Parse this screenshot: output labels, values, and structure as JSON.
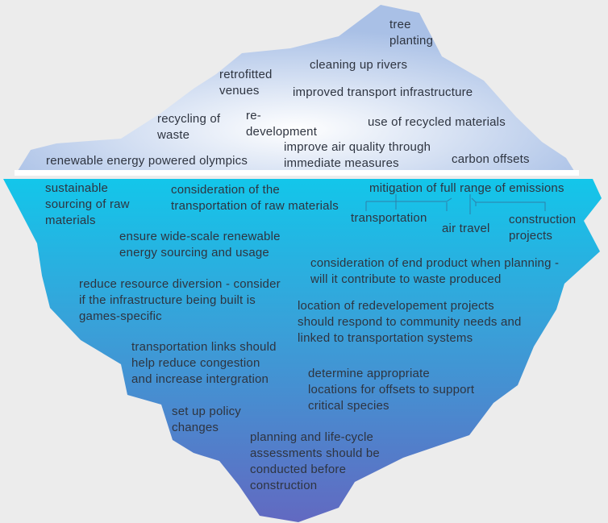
{
  "colors": {
    "background": "#ececec",
    "above_top": "#a9c0e6",
    "above_center": "#ffffff",
    "water_line": "#ffffff",
    "below_top": "#13c6ea",
    "below_bottom": "#6269c1",
    "text": "#2e3440"
  },
  "above_water": [
    "tree\nplanting",
    "cleaning up rivers",
    "retrofitted\nvenues",
    "improved transport infrastructure",
    "re-\ndevelopment",
    "recycling of\nwaste",
    "use of recycled materials",
    "improve air quality through\nimmediate measures",
    "renewable energy powered olympics",
    "carbon offsets"
  ],
  "below_water": [
    "sustainable\nsourcing of raw\nmaterials",
    "consideration of the\ntransportation of raw materials",
    "mitigation of full range of emissions",
    "transportation",
    "air travel",
    "construction\nprojects",
    "ensure wide-scale renewable\nenergy sourcing and usage",
    "consideration of end product when planning -\nwill it contribute to waste produced",
    "reduce resource diversion - consider\nif the infrastructure being built is\ngames-specific",
    "location of redevelopement projects\nshould respond to community needs and\nlinked to transportation systems",
    "transportation links should\nhelp reduce congestion\nand increase intergration",
    "determine appropriate\nlocations for offsets to support\ncritical species",
    "set up policy\nchanges",
    "planning and life-cycle\nassessments should be\nconducted before\nconstruction"
  ]
}
